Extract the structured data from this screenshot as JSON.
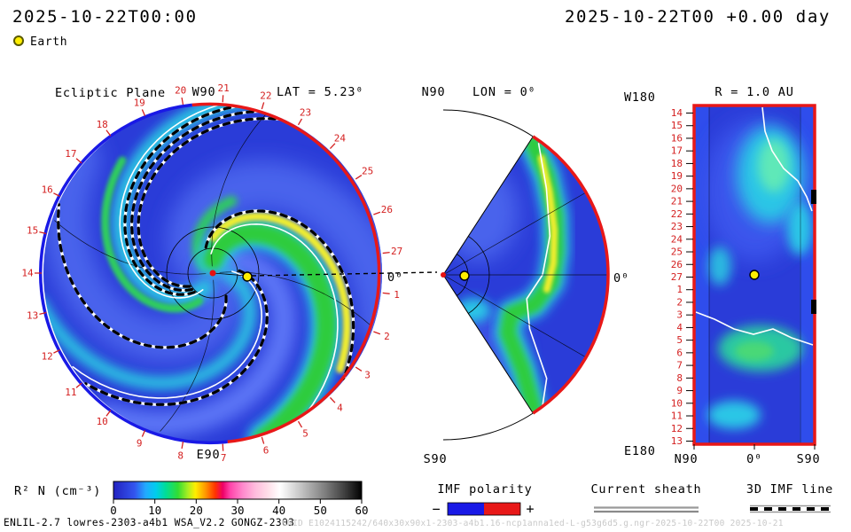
{
  "header": {
    "timestamp_left": "2025-10-22T00:00",
    "timestamp_right": "2025-10-22T00 +0.00 day"
  },
  "legend_earth": {
    "label": "Earth"
  },
  "ecliptic_panel": {
    "title": "Ecliptic Plane",
    "top_label": "W90",
    "bottom_label": "E90",
    "lat_label": "LAT = 5.23⁰",
    "earth_line_label": "0⁰",
    "day_ticks": [
      1,
      2,
      3,
      4,
      5,
      6,
      7,
      8,
      9,
      10,
      11,
      12,
      13,
      14,
      15,
      16,
      17,
      18,
      19,
      20,
      21,
      22,
      23,
      24,
      25,
      26,
      27
    ]
  },
  "meridional_panel": {
    "top_label": "N90",
    "bottom_label": "S90",
    "lon_label": "LON = 0⁰",
    "earth_line_label": "0⁰"
  },
  "radial_panel": {
    "title": "R = 1.0 AU",
    "top_left_label": "W180",
    "bottom_left_label": "E180",
    "x_ticks": [
      "N90",
      "0⁰",
      "S90"
    ],
    "day_ticks": [
      14,
      15,
      16,
      17,
      18,
      19,
      20,
      21,
      22,
      23,
      24,
      25,
      26,
      27,
      1,
      2,
      3,
      4,
      5,
      6,
      7,
      8,
      9,
      10,
      11,
      12,
      13
    ]
  },
  "colorbar": {
    "label": "R² N (cm⁻³)",
    "ticks": [
      0,
      10,
      20,
      30,
      40,
      50,
      60
    ],
    "gradient": [
      {
        "o": 0.0,
        "c": "#2222c0"
      },
      {
        "o": 0.085,
        "c": "#3355ee"
      },
      {
        "o": 0.13,
        "c": "#22aaff"
      },
      {
        "o": 0.17,
        "c": "#00ccee"
      },
      {
        "o": 0.21,
        "c": "#00dd99"
      },
      {
        "o": 0.26,
        "c": "#33dd33"
      },
      {
        "o": 0.3,
        "c": "#aaee22"
      },
      {
        "o": 0.33,
        "c": "#ffee00"
      },
      {
        "o": 0.37,
        "c": "#ff9900"
      },
      {
        "o": 0.41,
        "c": "#ff3300"
      },
      {
        "o": 0.44,
        "c": "#ee0066"
      },
      {
        "o": 0.47,
        "c": "#ff44aa"
      },
      {
        "o": 0.52,
        "c": "#ff88cc"
      },
      {
        "o": 0.57,
        "c": "#ffbbdd"
      },
      {
        "o": 0.62,
        "c": "#ffdde8"
      },
      {
        "o": 0.67,
        "c": "#ffffff"
      },
      {
        "o": 0.75,
        "c": "#c8c8c8"
      },
      {
        "o": 0.85,
        "c": "#808080"
      },
      {
        "o": 0.93,
        "c": "#404040"
      },
      {
        "o": 1.0,
        "c": "#000000"
      }
    ]
  },
  "legends": {
    "imf": {
      "title": "IMF polarity",
      "minus": "−",
      "plus": "+",
      "neg_color": "#1919e6",
      "pos_color": "#e81818"
    },
    "sheath": {
      "title": "Current sheath"
    },
    "imf_line": {
      "title": "3D IMF line"
    }
  },
  "footer": {
    "model_info": "ENLIL-2.7 lowres-2303-a4b1 WSA_V2.2 GONGZ-2303",
    "watermark": "UNID E1024115242/640x30x90x1-2303-a4b1.16-ncp1anna1ed-L-g53g6d5.g.ngr-2025-10-22T00  2025-10-21"
  },
  "chart_data": [
    {
      "type": "heatmap",
      "title": "Ecliptic Plane",
      "projection": "polar, viewed from solar north, Sun at center, Earth toward 0⁰ (right)",
      "quantity": "scaled density R² N (cm⁻³)",
      "value_range": [
        0,
        60
      ],
      "latitude_of_cut": "LAT = 5.23⁰",
      "angular_labels": [
        "W90 top",
        "E90 bottom",
        "0⁰ right"
      ],
      "day_of_month_ticks": [
        1,
        2,
        3,
        4,
        5,
        6,
        7,
        8,
        9,
        10,
        11,
        12,
        13,
        14,
        15,
        16,
        17,
        18,
        19,
        20,
        21,
        22,
        23,
        24,
        25,
        26,
        27
      ],
      "outer_boundary_polarity": {
        "right_half": "red (+)",
        "left_half": "blue (−)"
      },
      "features": [
        "Parker-spiral density arms (cyan/green/yellow on blue)",
        "white current sheet lines",
        "black/white dashed 3D IMF lines",
        "red Sun dot at center",
        "yellow Earth dot on 0⁰ line"
      ]
    },
    {
      "type": "heatmap",
      "title": "Meridional cut LON = 0⁰",
      "projection": "polar wedge, N90 top to S90 bottom, Earth line at 0⁰ (right)",
      "quantity": "scaled density R² N (cm⁻³)",
      "value_range": [
        0,
        60
      ],
      "features": [
        "bright high-density band near outer boundary",
        "white current sheet line",
        "red outer-boundary arc",
        "yellow Earth dot near vertex"
      ]
    },
    {
      "type": "heatmap",
      "title": "R = 1.0 AU",
      "projection": "latitude (N90→S90, x) vs longitude/arrival day (W180 top → E180 bottom, y)",
      "quantity": "scaled density R² N (cm⁻³)",
      "value_range": [
        0,
        60
      ],
      "x_ticks": [
        "N90",
        "0⁰",
        "S90"
      ],
      "day_ticks_top_to_bottom": [
        14,
        15,
        16,
        17,
        18,
        19,
        20,
        21,
        22,
        23,
        24,
        25,
        26,
        27,
        1,
        2,
        3,
        4,
        5,
        6,
        7,
        8,
        9,
        10,
        11,
        12,
        13
      ],
      "features": [
        "cyan/green density patches on blue",
        "white current sheet lines",
        "red map border",
        "yellow Earth dot at center"
      ]
    },
    {
      "type": "colorbar",
      "label": "R² N (cm⁻³)",
      "ticks": [
        0,
        10,
        20,
        30,
        40,
        50,
        60
      ],
      "style": "blue→cyan→green→yellow→red→magenta→white→black"
    }
  ]
}
